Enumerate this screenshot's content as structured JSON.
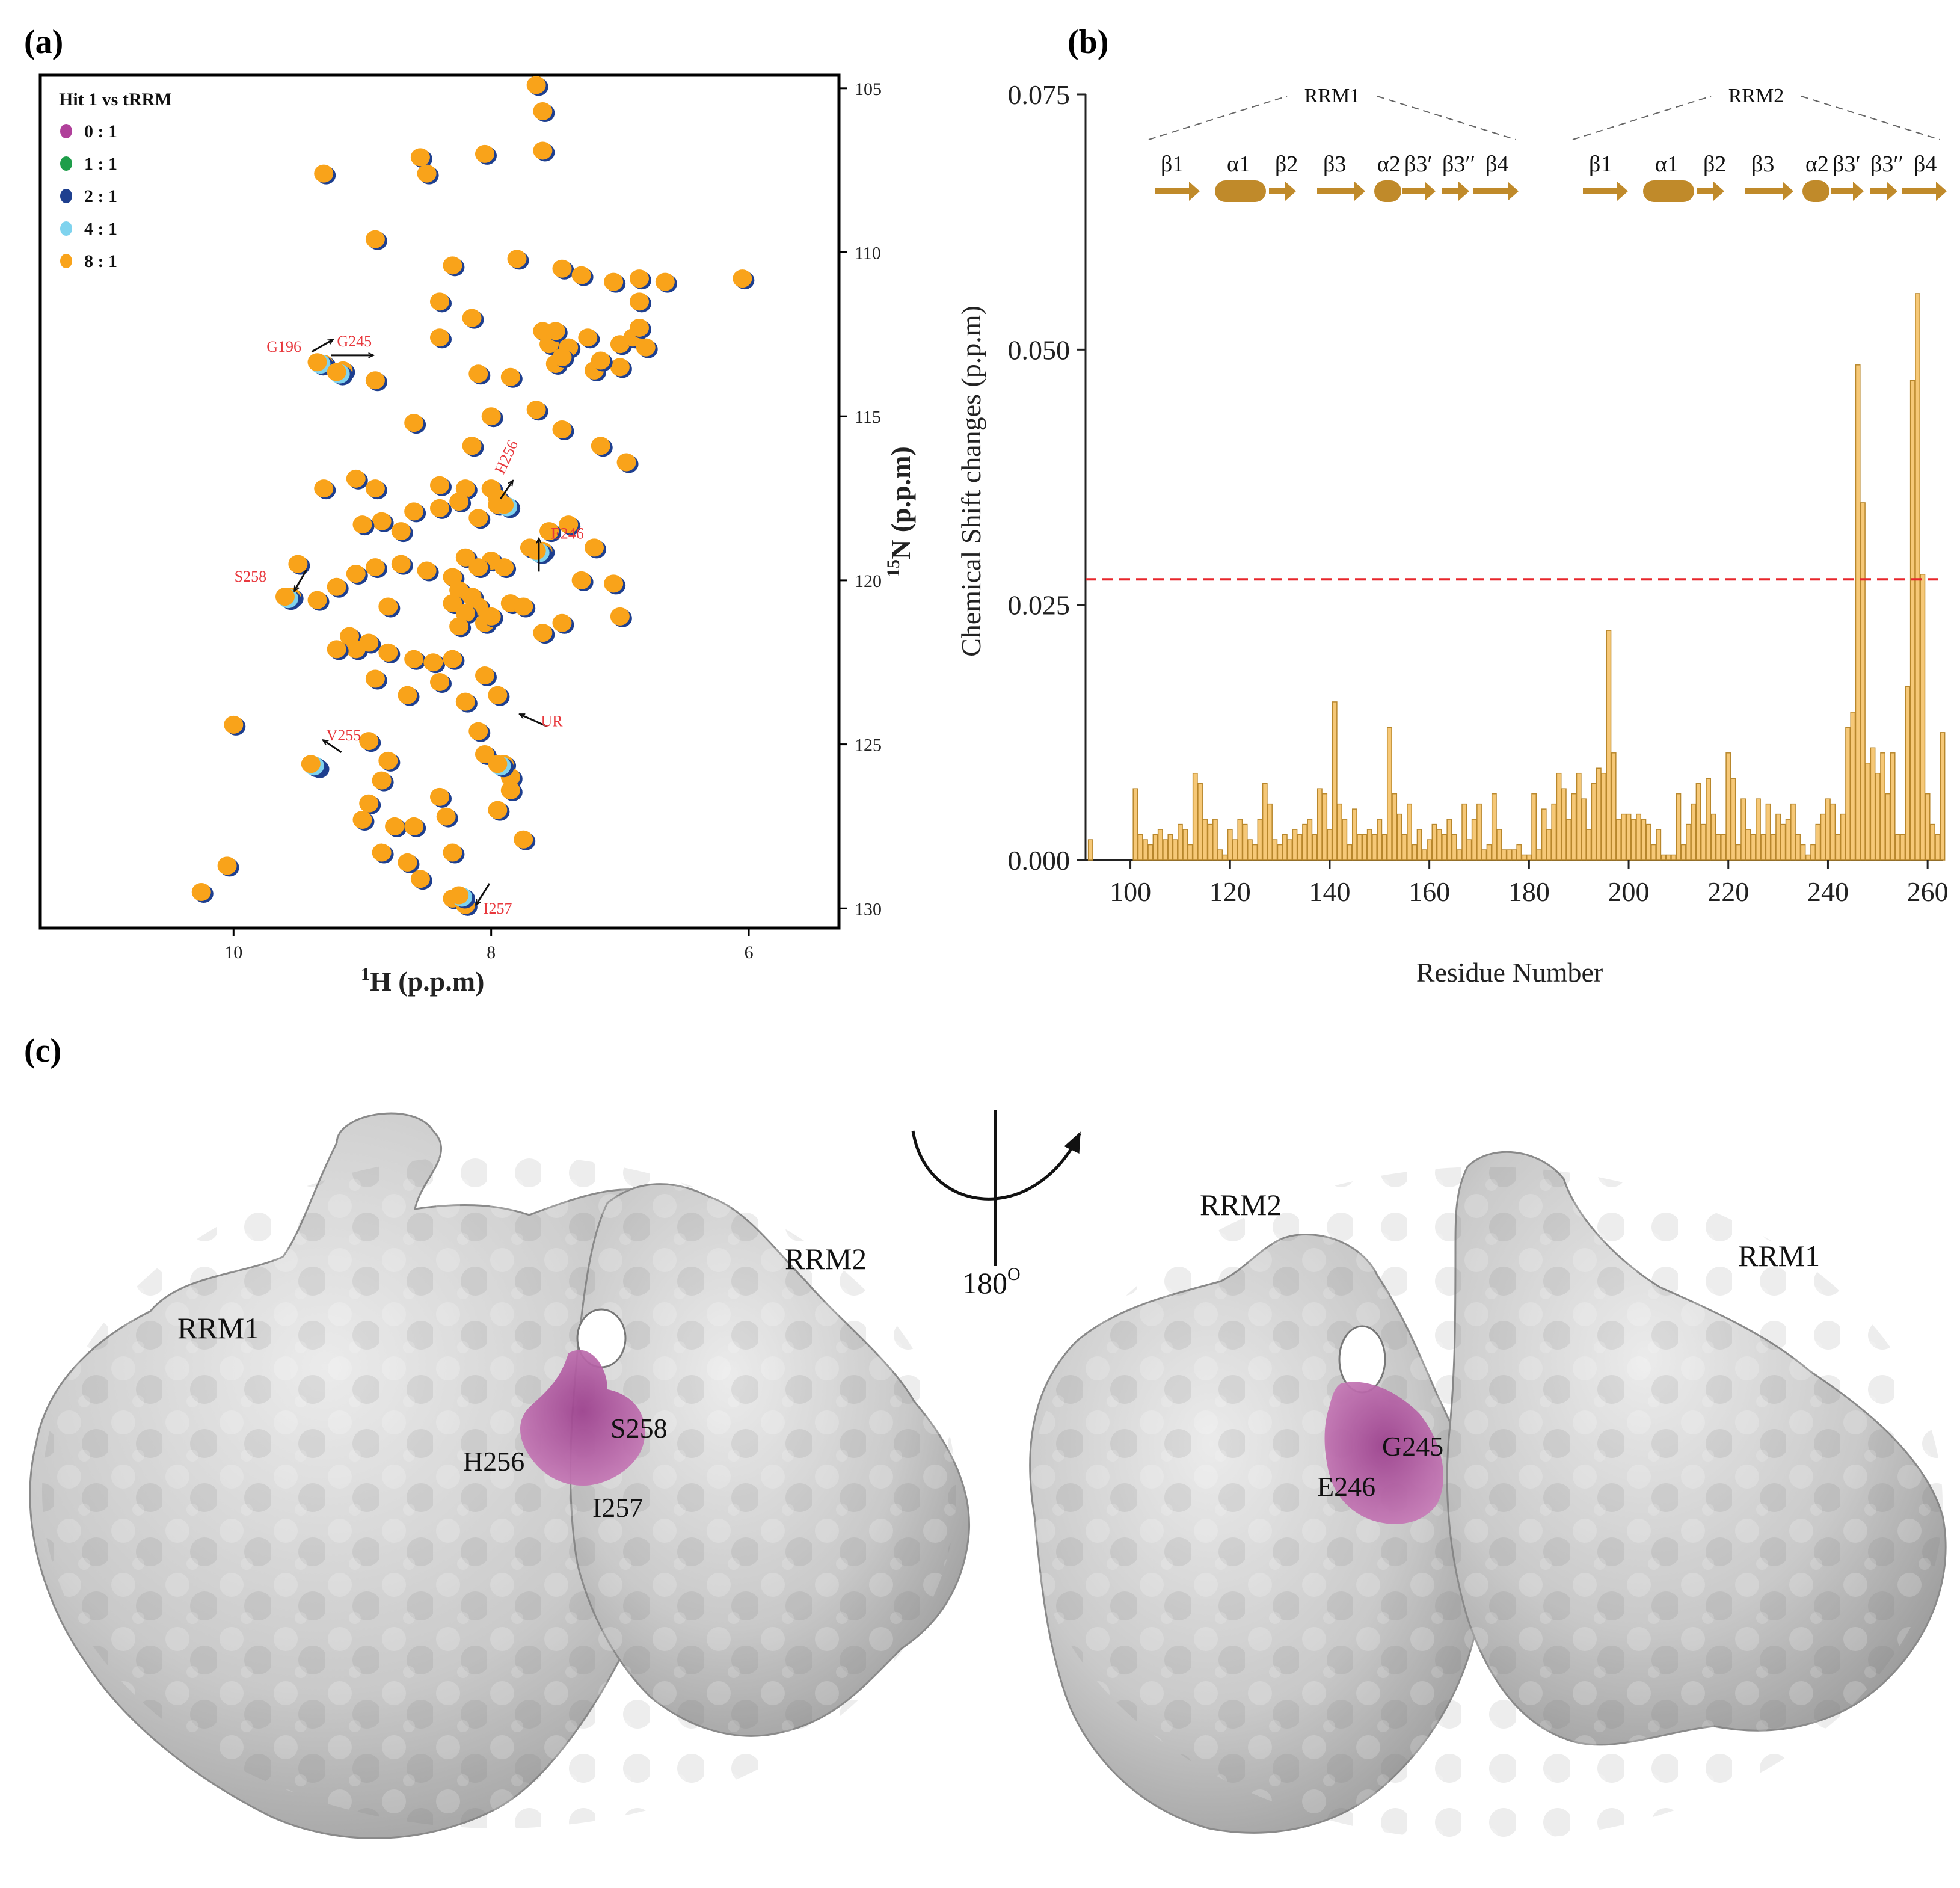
{
  "panel_labels": [
    "(a)",
    "(b)",
    "(c)"
  ],
  "chart_data": [
    {
      "type": "scatter",
      "panel": "(a)",
      "title": "Hit 1 vs tRRM",
      "xlabel_sup": "1",
      "xlabel": "H  (p.p.m)",
      "ylabel_sup": "15",
      "ylabel": "N  (p.p.m)",
      "xlim": [
        11.5,
        5.3
      ],
      "ylim": [
        130.6,
        104.6
      ],
      "xticks": [
        10,
        8,
        6
      ],
      "yticks": [
        105,
        110,
        115,
        120,
        125,
        130
      ],
      "legend": [
        {
          "label": "0 : 1",
          "color": "#b0409a"
        },
        {
          "label": "1 : 1",
          "color": "#1e9e4a"
        },
        {
          "label": "2 : 1",
          "color": "#1e3f8f"
        },
        {
          "label": "4 : 1",
          "color": "#7fd3ee"
        },
        {
          "label": "8 : 1",
          "color": "#f9a31a"
        }
      ],
      "annotations": [
        {
          "label": "G196",
          "x": 9.3,
          "y": 113.4
        },
        {
          "label": "G245",
          "x": 9.15,
          "y": 113.6
        },
        {
          "label": "H256",
          "x": 7.95,
          "y": 117.7
        },
        {
          "label": "E246",
          "x": 7.7,
          "y": 119.0
        },
        {
          "label": "S258",
          "x": 9.55,
          "y": 120.5
        },
        {
          "label": "UR",
          "x": 7.8,
          "y": 125.0
        },
        {
          "label": "V255",
          "x": 9.35,
          "y": 125.7
        },
        {
          "label": "I257",
          "x": 8.2,
          "y": 129.7
        }
      ],
      "peaks": [
        [
          7.65,
          104.9
        ],
        [
          7.6,
          105.7
        ],
        [
          9.3,
          107.6
        ],
        [
          8.55,
          107.1
        ],
        [
          8.5,
          107.6
        ],
        [
          8.05,
          107.0
        ],
        [
          7.6,
          106.9
        ],
        [
          8.4,
          111.5
        ],
        [
          8.9,
          109.6
        ],
        [
          8.3,
          110.4
        ],
        [
          7.8,
          110.2
        ],
        [
          7.45,
          110.5
        ],
        [
          7.3,
          110.7
        ],
        [
          7.05,
          110.9
        ],
        [
          6.85,
          110.8
        ],
        [
          6.65,
          110.9
        ],
        [
          6.05,
          110.8
        ],
        [
          6.85,
          111.5
        ],
        [
          8.4,
          112.6
        ],
        [
          8.15,
          112.0
        ],
        [
          7.6,
          112.4
        ],
        [
          7.55,
          112.8
        ],
        [
          7.5,
          112.4
        ],
        [
          7.4,
          112.9
        ],
        [
          7.25,
          112.6
        ],
        [
          7.0,
          112.8
        ],
        [
          6.9,
          112.6
        ],
        [
          6.85,
          112.3
        ],
        [
          6.8,
          112.9
        ],
        [
          7.5,
          113.4
        ],
        [
          7.45,
          113.2
        ],
        [
          9.3,
          113.4
        ],
        [
          9.15,
          113.6
        ],
        [
          8.9,
          113.9
        ],
        [
          8.1,
          113.7
        ],
        [
          7.85,
          113.8
        ],
        [
          7.2,
          113.6
        ],
        [
          7.0,
          113.5
        ],
        [
          7.15,
          113.3
        ],
        [
          8.6,
          115.2
        ],
        [
          8.0,
          115.0
        ],
        [
          8.15,
          115.9
        ],
        [
          7.65,
          114.8
        ],
        [
          7.45,
          115.4
        ],
        [
          7.15,
          115.9
        ],
        [
          6.95,
          116.4
        ],
        [
          9.3,
          117.2
        ],
        [
          9.05,
          116.9
        ],
        [
          8.9,
          117.2
        ],
        [
          8.4,
          117.1
        ],
        [
          8.2,
          117.2
        ],
        [
          8.0,
          117.2
        ],
        [
          7.95,
          117.5
        ],
        [
          8.25,
          117.6
        ],
        [
          8.1,
          118.1
        ],
        [
          8.4,
          117.8
        ],
        [
          8.6,
          117.9
        ],
        [
          8.85,
          118.2
        ],
        [
          9.0,
          118.3
        ],
        [
          8.7,
          118.5
        ],
        [
          7.55,
          118.5
        ],
        [
          7.4,
          118.3
        ],
        [
          7.95,
          117.7
        ],
        [
          7.7,
          119.0
        ],
        [
          7.6,
          119.1
        ],
        [
          8.2,
          119.3
        ],
        [
          8.0,
          119.4
        ],
        [
          8.1,
          119.6
        ],
        [
          8.3,
          119.9
        ],
        [
          8.25,
          120.3
        ],
        [
          8.15,
          120.5
        ],
        [
          8.3,
          120.7
        ],
        [
          8.1,
          120.8
        ],
        [
          8.2,
          121.0
        ],
        [
          8.05,
          121.3
        ],
        [
          8.25,
          121.4
        ],
        [
          8.0,
          121.1
        ],
        [
          7.9,
          119.6
        ],
        [
          7.85,
          120.7
        ],
        [
          8.5,
          119.7
        ],
        [
          8.7,
          119.5
        ],
        [
          8.9,
          119.6
        ],
        [
          9.05,
          119.8
        ],
        [
          9.2,
          120.2
        ],
        [
          8.8,
          120.8
        ],
        [
          9.55,
          120.5
        ],
        [
          9.5,
          119.5
        ],
        [
          9.35,
          120.6
        ],
        [
          9.1,
          121.7
        ],
        [
          9.05,
          122.1
        ],
        [
          9.2,
          122.1
        ],
        [
          8.95,
          121.9
        ],
        [
          8.8,
          122.2
        ],
        [
          8.6,
          122.4
        ],
        [
          8.45,
          122.5
        ],
        [
          8.3,
          122.4
        ],
        [
          8.4,
          123.1
        ],
        [
          8.2,
          123.7
        ],
        [
          8.05,
          122.9
        ],
        [
          7.95,
          123.5
        ],
        [
          8.65,
          123.5
        ],
        [
          8.9,
          123.0
        ],
        [
          7.2,
          119.0
        ],
        [
          7.3,
          120.0
        ],
        [
          7.05,
          120.1
        ],
        [
          7.0,
          121.1
        ],
        [
          7.45,
          121.3
        ],
        [
          7.6,
          121.6
        ],
        [
          7.75,
          120.8
        ],
        [
          10.0,
          124.4
        ],
        [
          8.95,
          124.9
        ],
        [
          8.8,
          125.5
        ],
        [
          8.85,
          126.1
        ],
        [
          8.95,
          126.8
        ],
        [
          9.0,
          127.3
        ],
        [
          8.75,
          127.5
        ],
        [
          8.6,
          127.5
        ],
        [
          8.35,
          127.2
        ],
        [
          8.85,
          128.3
        ],
        [
          8.65,
          128.6
        ],
        [
          8.55,
          129.1
        ],
        [
          8.1,
          124.6
        ],
        [
          8.05,
          125.3
        ],
        [
          7.9,
          125.6
        ],
        [
          7.85,
          126.0
        ],
        [
          7.85,
          126.4
        ],
        [
          7.75,
          127.9
        ],
        [
          8.3,
          128.3
        ],
        [
          8.3,
          129.7
        ],
        [
          8.2,
          129.9
        ],
        [
          9.35,
          125.7
        ],
        [
          10.05,
          128.7
        ],
        [
          10.25,
          129.5
        ],
        [
          7.95,
          127.0
        ],
        [
          8.4,
          126.6
        ]
      ],
      "shifted_peaks": [
        [
          9.35,
          113.35
        ],
        [
          9.2,
          113.65
        ],
        [
          7.9,
          117.7
        ],
        [
          7.65,
          119.1
        ],
        [
          9.6,
          120.5
        ],
        [
          7.95,
          125.6
        ],
        [
          9.4,
          125.6
        ],
        [
          8.25,
          129.6
        ]
      ]
    },
    {
      "type": "bar",
      "panel": "(b)",
      "xlabel": "Residue Number",
      "ylabel": "Chemical Shift changes (p.p.m)",
      "xlim": [
        91,
        263
      ],
      "ylim": [
        0,
        0.075
      ],
      "xticks": [
        100,
        120,
        140,
        160,
        180,
        200,
        220,
        240,
        260
      ],
      "yticks": [
        "0.000",
        "0.025",
        "0.050",
        "0.075"
      ],
      "threshold": 0.0275,
      "threshold_color": "#e8262b",
      "bar_color": "#f6c877",
      "bar_edge": "#b8872c",
      "residues": [
        92,
        101,
        102,
        103,
        104,
        105,
        106,
        107,
        108,
        109,
        110,
        111,
        112,
        113,
        114,
        115,
        116,
        117,
        118,
        119,
        120,
        121,
        122,
        123,
        124,
        125,
        126,
        127,
        128,
        129,
        130,
        131,
        132,
        133,
        134,
        135,
        136,
        137,
        138,
        139,
        140,
        141,
        142,
        143,
        144,
        145,
        146,
        147,
        148,
        149,
        150,
        151,
        152,
        153,
        154,
        155,
        156,
        157,
        158,
        159,
        160,
        161,
        162,
        163,
        164,
        165,
        166,
        167,
        168,
        169,
        170,
        171,
        172,
        173,
        174,
        175,
        176,
        177,
        178,
        179,
        180,
        181,
        182,
        183,
        184,
        185,
        186,
        187,
        188,
        189,
        190,
        191,
        192,
        193,
        194,
        195,
        196,
        197,
        198,
        199,
        200,
        201,
        202,
        203,
        204,
        205,
        206,
        207,
        208,
        209,
        210,
        211,
        212,
        213,
        214,
        215,
        216,
        217,
        218,
        219,
        220,
        221,
        222,
        223,
        224,
        225,
        226,
        227,
        228,
        229,
        230,
        231,
        232,
        233,
        234,
        235,
        236,
        237,
        238,
        239,
        240,
        241,
        242,
        243,
        244,
        245,
        246,
        247,
        248,
        249,
        250,
        251,
        252,
        253,
        254,
        255,
        256,
        257,
        258,
        259,
        260,
        261,
        262,
        263
      ],
      "values": [
        0.002,
        0.007,
        0.0025,
        0.002,
        0.0015,
        0.0025,
        0.003,
        0.002,
        0.0025,
        0.002,
        0.0035,
        0.003,
        0.0015,
        0.0085,
        0.0075,
        0.004,
        0.0035,
        0.004,
        0.001,
        0.0005,
        0.003,
        0.002,
        0.004,
        0.0035,
        0.002,
        0.0015,
        0.004,
        0.0075,
        0.0055,
        0.002,
        0.0015,
        0.0025,
        0.002,
        0.003,
        0.0025,
        0.0035,
        0.004,
        0.0025,
        0.007,
        0.0065,
        0.003,
        0.0155,
        0.0055,
        0.004,
        0.0015,
        0.005,
        0.0025,
        0.0025,
        0.003,
        0.0025,
        0.004,
        0.0025,
        0.013,
        0.0065,
        0.0045,
        0.0025,
        0.0055,
        0.0015,
        0.003,
        0.001,
        0.002,
        0.0035,
        0.003,
        0.0025,
        0.004,
        0.0025,
        0.001,
        0.0055,
        0.002,
        0.004,
        0.0055,
        0.001,
        0.0015,
        0.0065,
        0.003,
        0.001,
        0.001,
        0.001,
        0.0015,
        0.0005,
        0.0005,
        0.0065,
        0.001,
        0.005,
        0.003,
        0.0055,
        0.0085,
        0.007,
        0.004,
        0.0065,
        0.0085,
        0.006,
        0.003,
        0.0075,
        0.009,
        0.0085,
        0.0225,
        0.0105,
        0.004,
        0.0045,
        0.0045,
        0.004,
        0.0045,
        0.004,
        0.0035,
        0.0015,
        0.003,
        0.0005,
        0.0005,
        0.0005,
        0.0065,
        0.0015,
        0.0035,
        0.0055,
        0.0075,
        0.0035,
        0.008,
        0.0045,
        0.0025,
        0.0025,
        0.0105,
        0.008,
        0.0015,
        0.006,
        0.003,
        0.0025,
        0.006,
        0.0025,
        0.0055,
        0.0025,
        0.0045,
        0.0035,
        0.004,
        0.0055,
        0.0025,
        0.0015,
        0.0005,
        0.0015,
        0.0035,
        0.0045,
        0.006,
        0.0055,
        0.0025,
        0.0045,
        0.013,
        0.0145,
        0.0485,
        0.035,
        0.0095,
        0.011,
        0.0085,
        0.0105,
        0.0065,
        0.0105,
        0.0025,
        0.0025,
        0.017,
        0.047,
        0.0555,
        0.028,
        0.0065,
        0.0035,
        0.0025,
        0.0125
      ],
      "domains": [
        "RRM1",
        "RRM2"
      ],
      "topology": [
        "β1",
        "α1",
        "β2",
        "β3",
        "α2",
        "β3′",
        "β3′′",
        "β4"
      ]
    }
  ],
  "structure": {
    "left": {
      "domains": [
        "RRM1",
        "RRM2"
      ],
      "residues": [
        "S258",
        "H256",
        "I257"
      ]
    },
    "right": {
      "domains": [
        "RRM2",
        "RRM1"
      ],
      "residues": [
        "G245",
        "E246"
      ]
    },
    "rotation_label": "180",
    "rotation_sup": "O",
    "surface_color": "#c9c9c9",
    "highlight_color": "#b0559f"
  }
}
